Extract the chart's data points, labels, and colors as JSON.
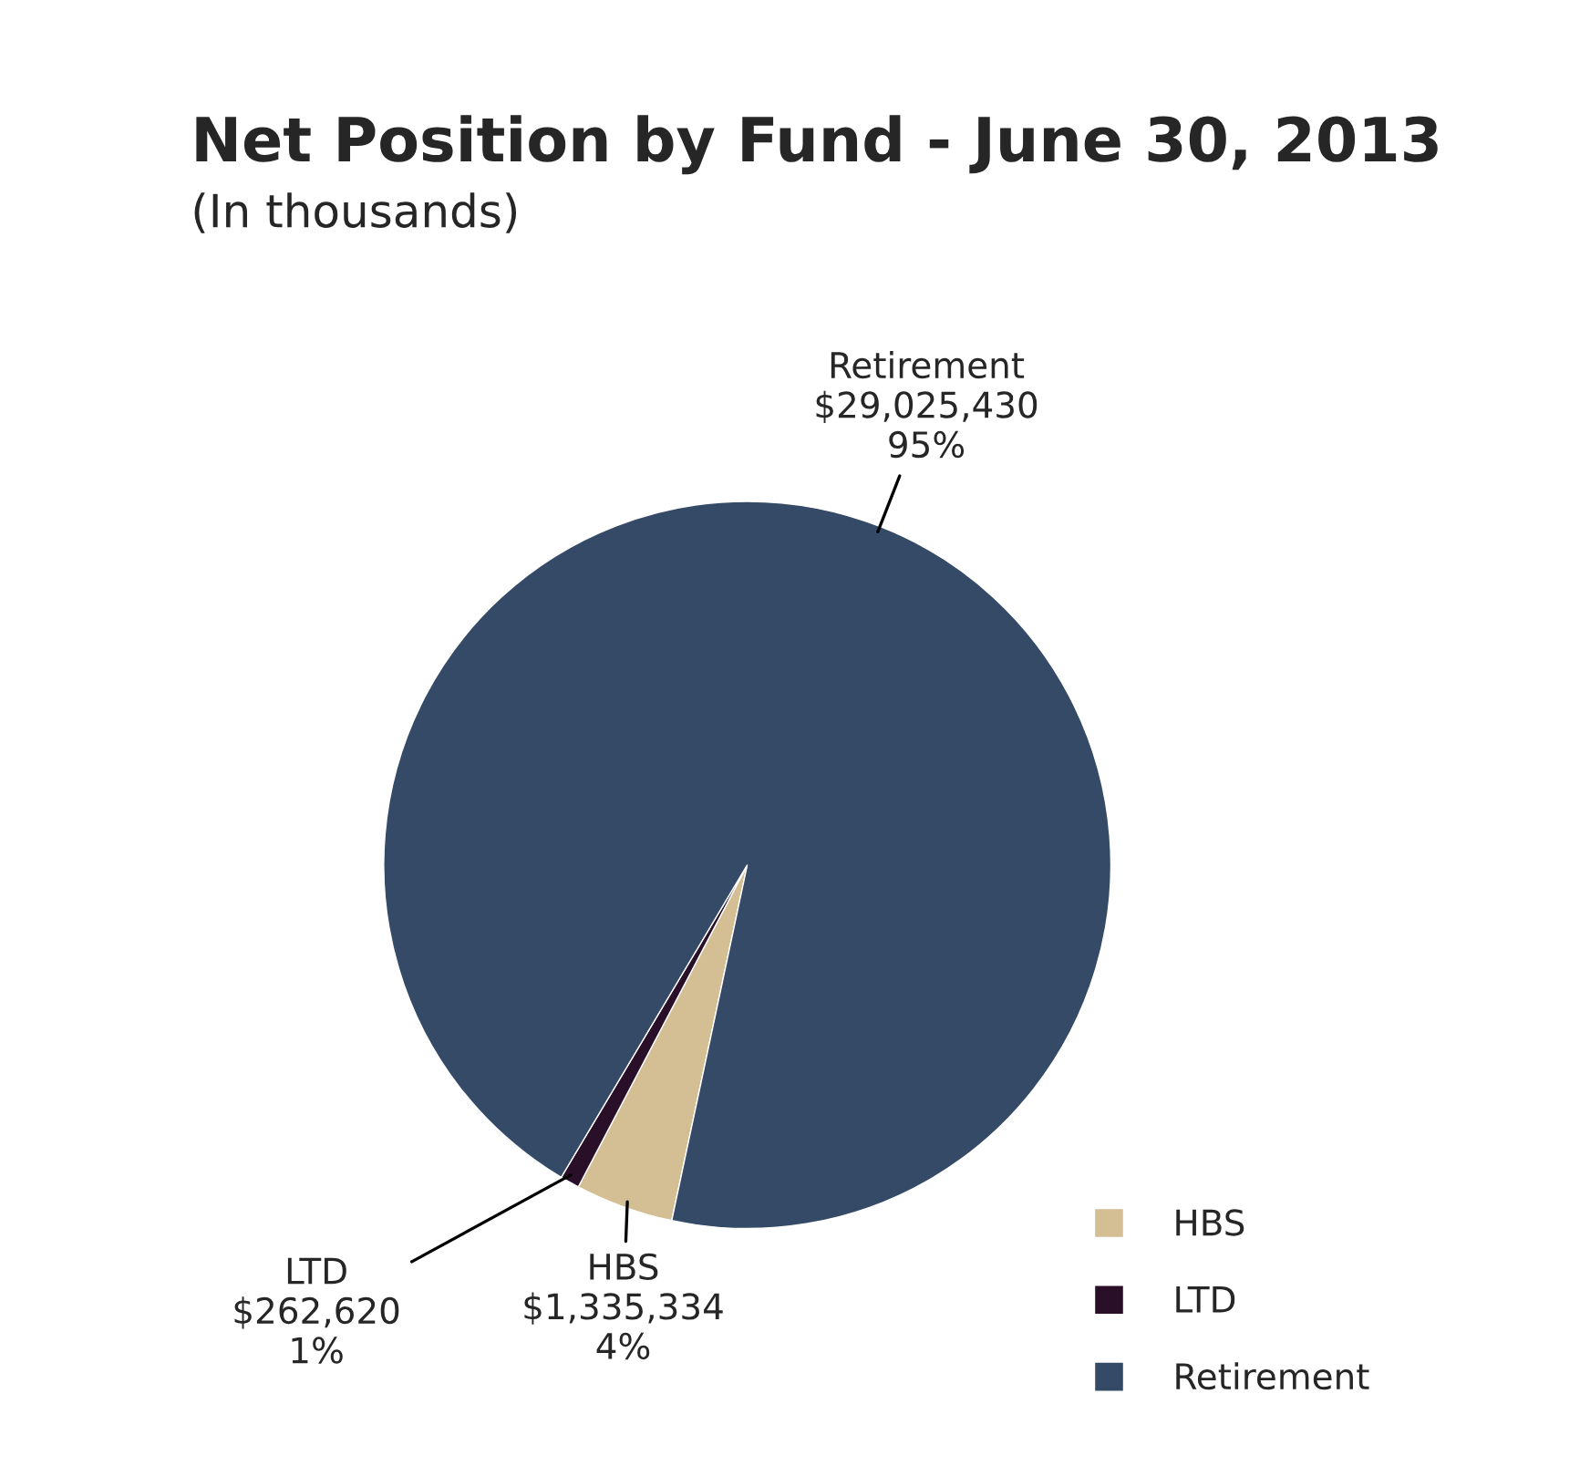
{
  "chart_data": {
    "type": "pie",
    "title": "Net Position by Fund - June 30, 2013",
    "subtitle": "(In thousands)",
    "categories": [
      "HBS",
      "LTD",
      "Retirement"
    ],
    "values": [
      1335334,
      262620,
      29025430
    ],
    "colors": [
      "#d4bf94",
      "#2a0f28",
      "#344a66"
    ],
    "value_labels": [
      "$1,335,334\n4%",
      "$262,620\n1%",
      "$29,025,430\n95%"
    ],
    "legend": "bottom right"
  }
}
